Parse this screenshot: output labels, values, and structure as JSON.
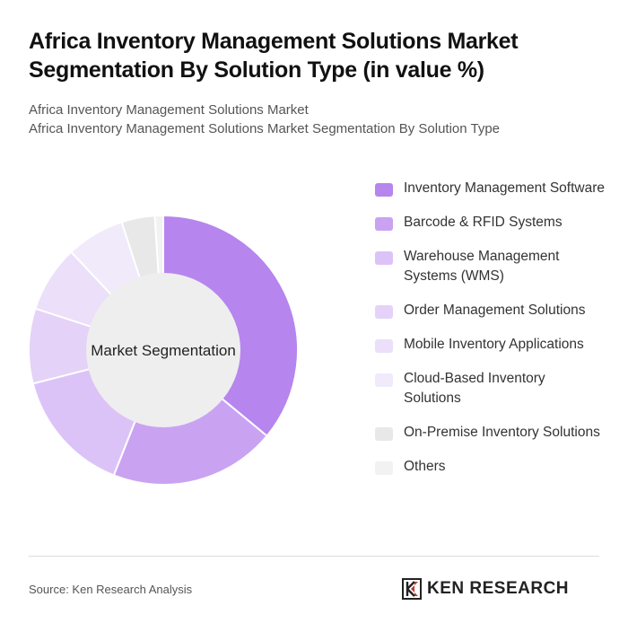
{
  "header": {
    "title": "Africa Inventory Management Solutions Market Segmentation By Solution Type (in value %)",
    "subtitle_line1": "Africa Inventory Management Solutions Market",
    "subtitle_line2": "Africa Inventory Management Solutions Market Segmentation By Solution Type"
  },
  "chart_data": {
    "type": "pie",
    "donut": true,
    "center_label": "Market Segmentation",
    "legend_position": "right",
    "categories": [
      "Inventory Management Software",
      "Barcode & RFID Systems",
      "Warehouse Management Systems (WMS)",
      "Order Management Solutions",
      "Mobile Inventory Applications",
      "Cloud-Based Inventory Solutions",
      "On-Premise Inventory Solutions",
      "Others"
    ],
    "values": [
      36,
      20,
      15,
      9,
      8,
      7,
      4,
      1
    ],
    "colors": [
      "#b685ee",
      "#c9a3f2",
      "#dcc3f7",
      "#e4d2f8",
      "#ebdff9",
      "#f1eafb",
      "#e8e8e8",
      "#f2f2f2"
    ]
  },
  "footer": {
    "source": "Source: Ken Research Analysis",
    "logo_text": "KEN RESEARCH"
  }
}
